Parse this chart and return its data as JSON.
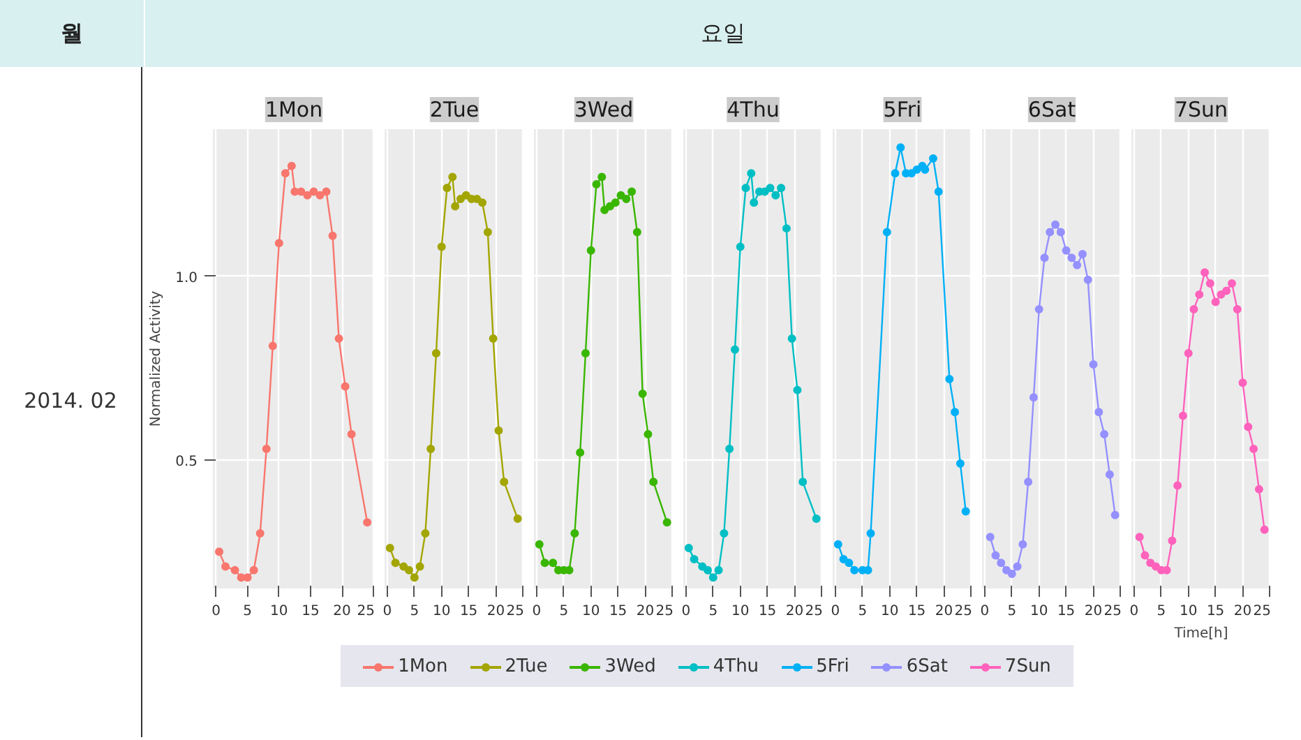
{
  "chart_data": [
    {
      "type": "line",
      "title": "1Mon",
      "ylabel": "Normalized Activity",
      "annotations": [
        "월",
        "요일",
        "2014. 02"
      ],
      "x": [
        0.5,
        1.5,
        3,
        4,
        5,
        6,
        7,
        8,
        9,
        10,
        11,
        12,
        12.5,
        13.5,
        14.5,
        15.5,
        16.5,
        17.5,
        18.5,
        19.5,
        20.5,
        21.5,
        24
      ],
      "series": [
        {
          "name": "1Mon",
          "color": "#f8766d",
          "values": [
            0.25,
            0.21,
            0.2,
            0.18,
            0.18,
            0.2,
            0.3,
            0.53,
            0.81,
            1.09,
            1.28,
            1.3,
            1.23,
            1.23,
            1.22,
            1.23,
            1.22,
            1.23,
            1.11,
            0.83,
            0.7,
            0.57,
            0.33
          ]
        }
      ],
      "xlim": [
        -0.5,
        25.2
      ],
      "ylim": [
        0.15,
        1.4
      ],
      "xticks": [
        0,
        5,
        10,
        15,
        20,
        25
      ],
      "yticks": [
        {
          "value": 0.5,
          "label": "0.5"
        },
        {
          "value": 1.0,
          "label": "1.0"
        }
      ],
      "grid": true,
      "marker": "circle",
      "legend": "bottom"
    },
    {
      "type": "line",
      "title": "2Tue",
      "x": [
        0.5,
        1.5,
        3,
        4,
        5,
        6,
        7,
        8,
        9,
        10,
        11,
        12,
        12.5,
        13.5,
        14.5,
        15.5,
        16.5,
        17.5,
        18.5,
        19.5,
        20.5,
        21.5,
        24
      ],
      "series": [
        {
          "name": "2Tue",
          "color": "#a3a500",
          "values": [
            0.26,
            0.22,
            0.21,
            0.2,
            0.18,
            0.21,
            0.3,
            0.53,
            0.79,
            1.08,
            1.24,
            1.27,
            1.19,
            1.21,
            1.22,
            1.21,
            1.21,
            1.2,
            1.12,
            0.83,
            0.58,
            0.44,
            0.34
          ]
        }
      ],
      "xlim": [
        -0.5,
        25.2
      ],
      "ylim": [
        0.15,
        1.4
      ],
      "xticks": [
        0,
        5,
        10,
        15,
        20,
        25
      ],
      "grid": true,
      "marker": "circle",
      "legend": "bottom",
      "tick_labels": "x"
    },
    {
      "type": "line",
      "title": "3Wed",
      "x": [
        0.5,
        1.5,
        3,
        4,
        5,
        6,
        7,
        8,
        9,
        10,
        11,
        12,
        12.5,
        13.5,
        14.5,
        15.5,
        16.5,
        17.5,
        18.5,
        19.5,
        20.5,
        21.5,
        24
      ],
      "series": [
        {
          "name": "3Wed",
          "color": "#39b600",
          "values": [
            0.27,
            0.22,
            0.22,
            0.2,
            0.2,
            0.2,
            0.3,
            0.52,
            0.79,
            1.07,
            1.25,
            1.27,
            1.18,
            1.19,
            1.2,
            1.22,
            1.21,
            1.23,
            1.12,
            0.68,
            0.57,
            0.44,
            0.33
          ]
        }
      ],
      "xlim": [
        -0.5,
        25.2
      ],
      "ylim": [
        0.15,
        1.4
      ],
      "xticks": [
        0,
        5,
        10,
        15,
        20,
        25
      ],
      "grid": true,
      "marker": "circle",
      "legend": "bottom",
      "tick_labels": "x"
    },
    {
      "type": "line",
      "title": "4Thu",
      "x": [
        0.5,
        1.5,
        3,
        4,
        5,
        6,
        7,
        8,
        9,
        10,
        11,
        12,
        12.5,
        13.5,
        14.5,
        15.5,
        16.5,
        17.5,
        18.5,
        19.5,
        20.5,
        21.5,
        24
      ],
      "series": [
        {
          "name": "4Thu",
          "color": "#00bfc4",
          "values": [
            0.26,
            0.23,
            0.21,
            0.2,
            0.18,
            0.2,
            0.3,
            0.53,
            0.8,
            1.08,
            1.24,
            1.28,
            1.2,
            1.23,
            1.23,
            1.24,
            1.22,
            1.24,
            1.13,
            0.83,
            0.69,
            0.44,
            0.34
          ]
        }
      ],
      "xlim": [
        -0.5,
        25.2
      ],
      "ylim": [
        0.15,
        1.4
      ],
      "xticks": [
        0,
        5,
        10,
        15,
        20,
        25
      ],
      "grid": true,
      "marker": "circle",
      "legend": "bottom",
      "tick_labels": "x"
    },
    {
      "type": "line",
      "title": "5Fri",
      "x": [
        0.5,
        1.5,
        2.5,
        3.5,
        5,
        6,
        6.5,
        9.5,
        11,
        12,
        13,
        14,
        15,
        16,
        16.5,
        18,
        19,
        21,
        22,
        23,
        24
      ],
      "series": [
        {
          "name": "5Fri",
          "color": "#00b0f6",
          "values": [
            0.27,
            0.23,
            0.22,
            0.2,
            0.2,
            0.2,
            0.3,
            1.12,
            1.28,
            1.35,
            1.28,
            1.28,
            1.29,
            1.3,
            1.29,
            1.32,
            1.23,
            0.72,
            0.63,
            0.49,
            0.36
          ]
        }
      ],
      "xlim": [
        -0.5,
        25.2
      ],
      "ylim": [
        0.15,
        1.4
      ],
      "xticks": [
        0,
        5,
        10,
        15,
        20,
        25
      ],
      "grid": true,
      "marker": "circle",
      "legend": "bottom",
      "tick_labels": "x"
    },
    {
      "type": "line",
      "title": "6Sat",
      "x": [
        1,
        2,
        3,
        4,
        5,
        6,
        7,
        8,
        9,
        10,
        11,
        12,
        13,
        14,
        15,
        16,
        17,
        18,
        19,
        20,
        21,
        22,
        23,
        24
      ],
      "series": [
        {
          "name": "6Sat",
          "color": "#9590ff",
          "values": [
            0.29,
            0.24,
            0.22,
            0.2,
            0.19,
            0.21,
            0.27,
            0.44,
            0.67,
            0.91,
            1.05,
            1.12,
            1.14,
            1.12,
            1.07,
            1.05,
            1.03,
            1.06,
            0.99,
            0.76,
            0.63,
            0.57,
            0.46,
            0.35
          ]
        }
      ],
      "xlim": [
        -0.5,
        25.2
      ],
      "ylim": [
        0.15,
        1.4
      ],
      "xticks": [
        0,
        5,
        10,
        15,
        20,
        25
      ],
      "grid": true,
      "marker": "circle",
      "legend": "bottom",
      "tick_labels": "x"
    },
    {
      "type": "line",
      "title": "7Sun",
      "xlabel": "Time[h]",
      "x": [
        1,
        2,
        3,
        4,
        5,
        6,
        7,
        8,
        9,
        10,
        11,
        12,
        13,
        14,
        15,
        16,
        17,
        18,
        19,
        20,
        21,
        22,
        23,
        24
      ],
      "series": [
        {
          "name": "7Sun",
          "color": "#ff62bc",
          "values": [
            0.29,
            0.24,
            0.22,
            0.21,
            0.2,
            0.2,
            0.28,
            0.43,
            0.62,
            0.79,
            0.91,
            0.95,
            1.01,
            0.98,
            0.93,
            0.95,
            0.96,
            0.98,
            0.91,
            0.71,
            0.59,
            0.53,
            0.42,
            0.31
          ]
        }
      ],
      "xlim": [
        -0.5,
        25.2
      ],
      "ylim": [
        0.15,
        1.4
      ],
      "xticks": [
        0,
        5,
        10,
        15,
        20,
        25
      ],
      "grid": true,
      "marker": "circle",
      "legend": "bottom",
      "tick_labels": "x"
    }
  ]
}
